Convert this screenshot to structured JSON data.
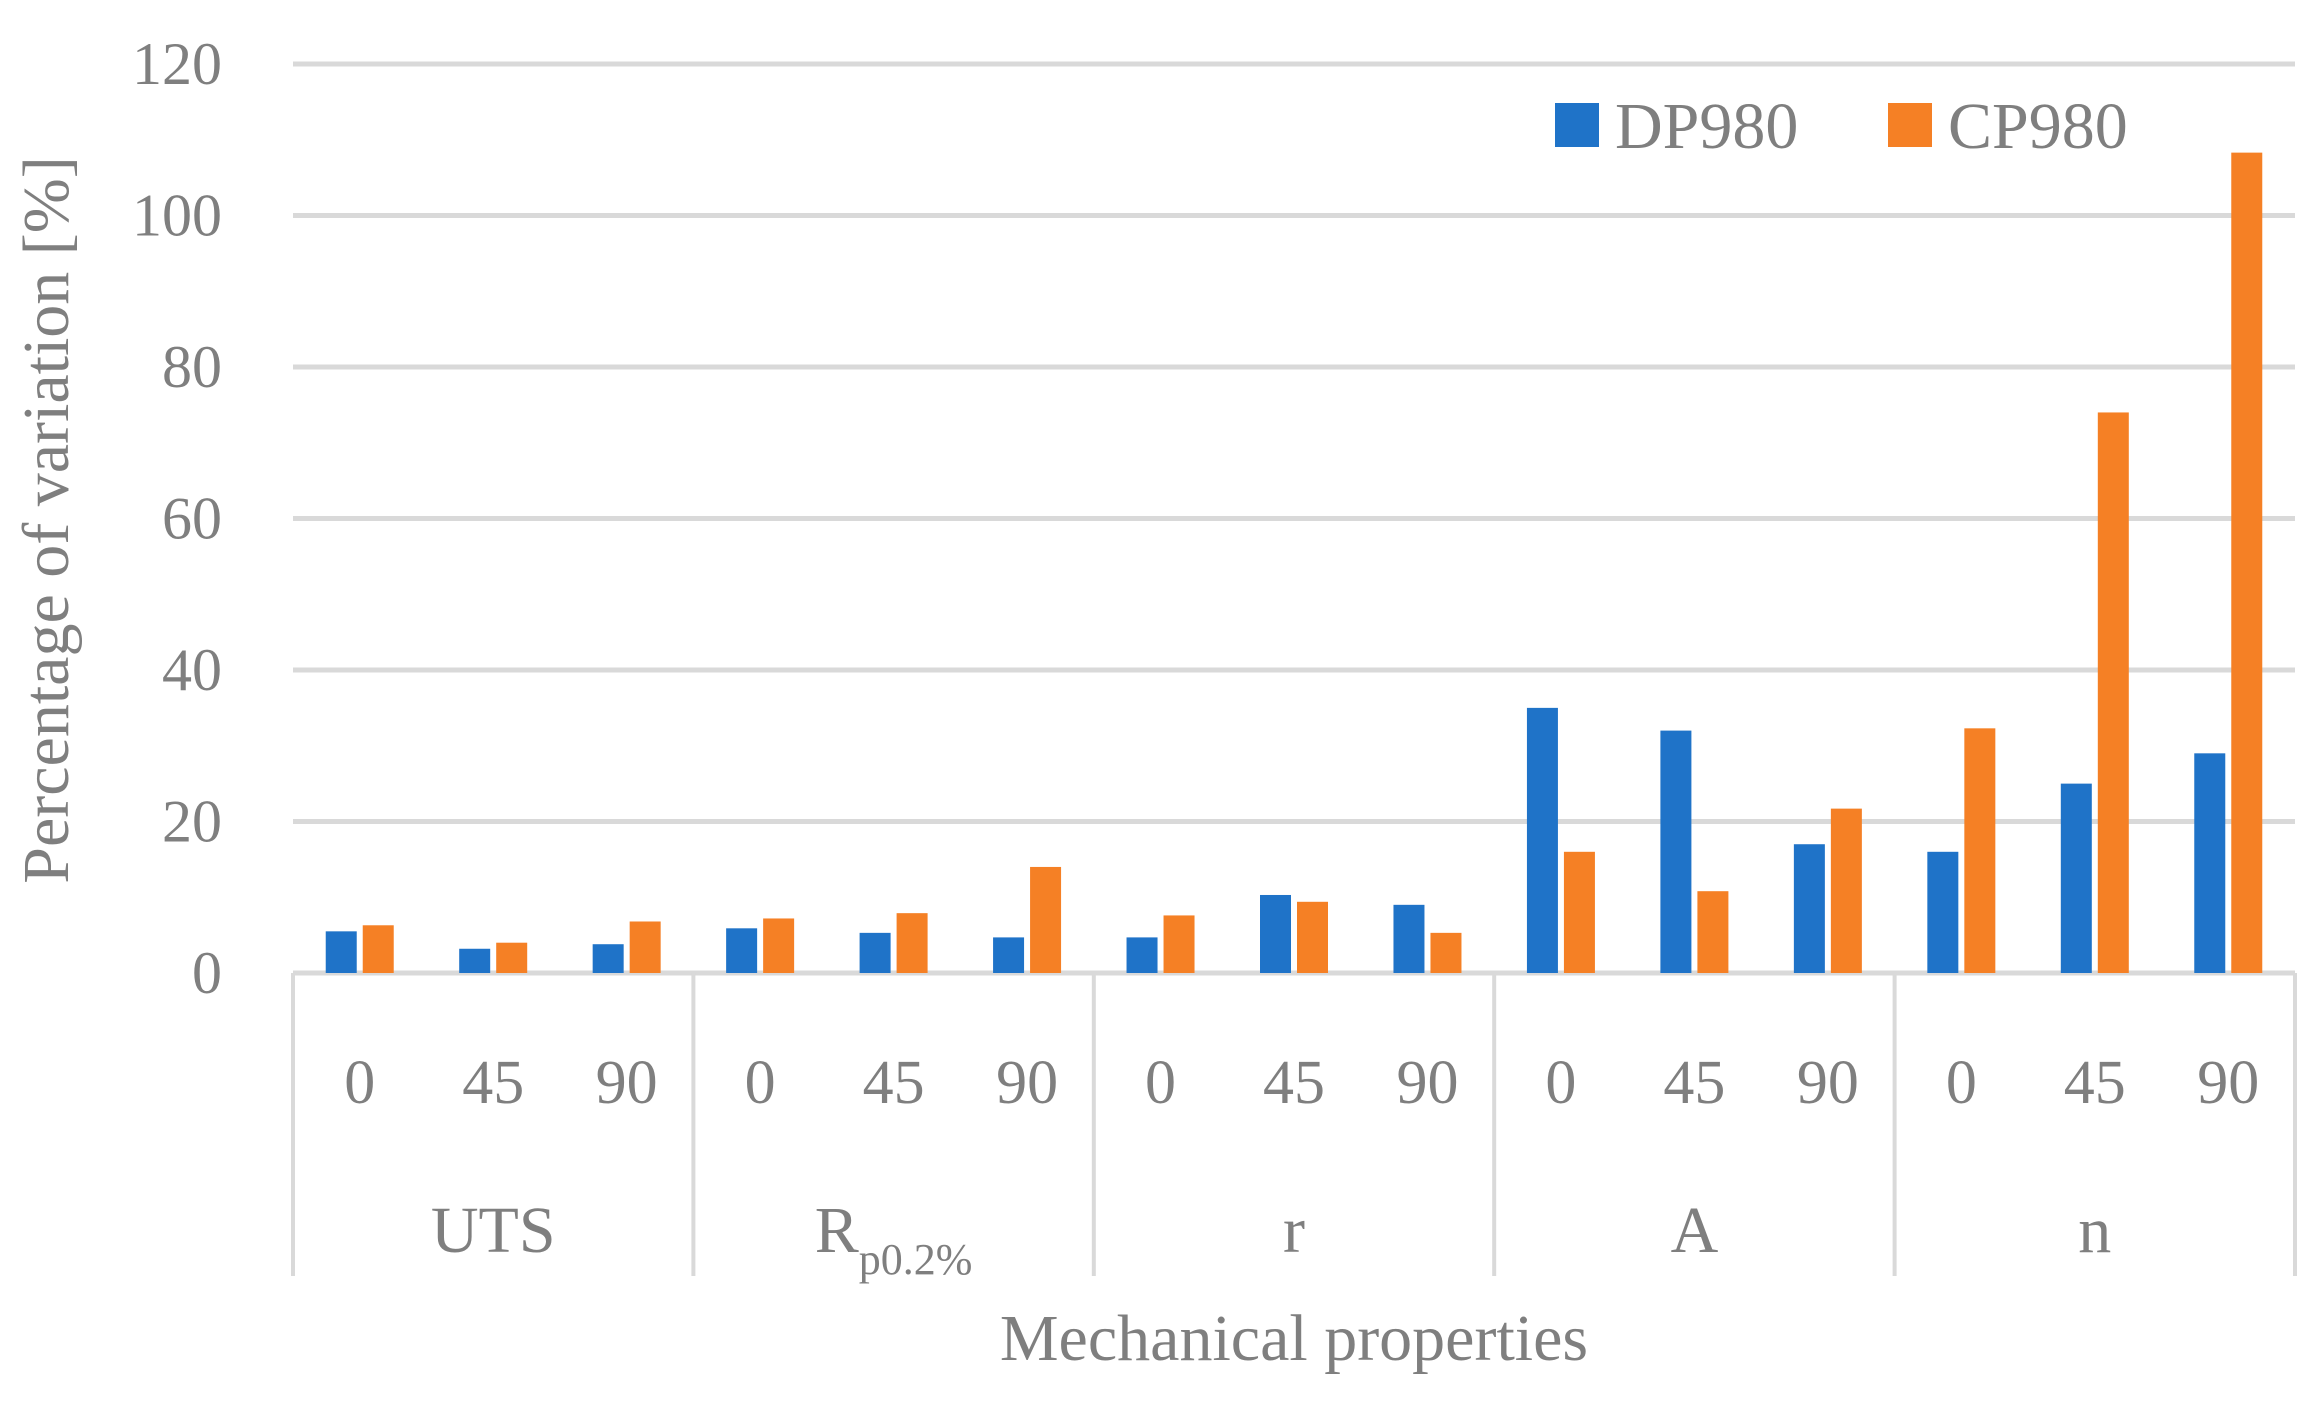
{
  "chart_data": {
    "type": "bar",
    "title": "",
    "ylabel": "Percentage of variation [%]",
    "xlabel": "Mechanical properties",
    "ylim": [
      0,
      120
    ],
    "yticks": [
      0,
      20,
      40,
      60,
      80,
      100,
      120
    ],
    "ytick_labels": [
      "0",
      "20",
      "40",
      "60",
      "80",
      "100",
      "120"
    ],
    "grid": true,
    "legend_position": "top-right",
    "groups": [
      {
        "name": "UTS",
        "categories": [
          "0",
          "45",
          "90"
        ]
      },
      {
        "name": "R",
        "subscript": "p0.2%",
        "categories": [
          "0",
          "45",
          "90"
        ]
      },
      {
        "name": "r",
        "categories": [
          "0",
          "45",
          "90"
        ]
      },
      {
        "name": "A",
        "categories": [
          "0",
          "45",
          "90"
        ]
      },
      {
        "name": "n",
        "categories": [
          "0",
          "45",
          "90"
        ]
      }
    ],
    "series": [
      {
        "name": "DP980",
        "color": "#1f73c8",
        "values": [
          5.5,
          3.2,
          3.8,
          5.9,
          5.3,
          4.7,
          4.7,
          10.3,
          9.0,
          35.0,
          32.0,
          17.0,
          16.0,
          25.0,
          29.0
        ]
      },
      {
        "name": "CP980",
        "color": "#f58025",
        "values": [
          6.3,
          4.0,
          6.8,
          7.2,
          7.9,
          14.0,
          7.6,
          9.4,
          5.3,
          16.0,
          10.8,
          21.7,
          32.3,
          74.0,
          108.3
        ]
      }
    ]
  }
}
